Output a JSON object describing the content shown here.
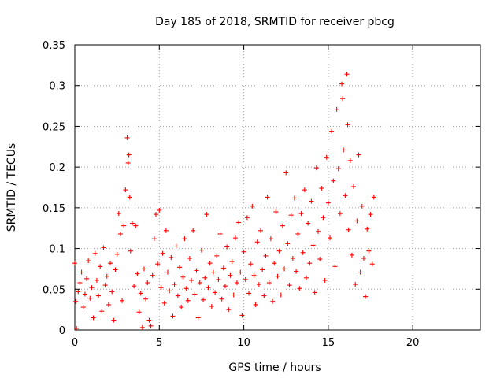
{
  "chart_data": {
    "type": "scatter",
    "title": "Day 185 of 2018, SRMTID for receiver pbcg",
    "xlabel": "GPS time / hours",
    "ylabel": "SRMTID / TECUs",
    "xlim": [
      0,
      24
    ],
    "ylim": [
      0,
      0.35
    ],
    "x_ticks": [
      0,
      5,
      10,
      15,
      20
    ],
    "x_tick_labels": [
      "0",
      "5",
      "10",
      "15",
      "20"
    ],
    "y_ticks": [
      0,
      0.05,
      0.1,
      0.15,
      0.2,
      0.25,
      0.3,
      0.35
    ],
    "y_tick_labels": [
      "0",
      "0.05",
      "0.1",
      "0.15",
      "0.2",
      "0.25",
      "0.3",
      "0.35"
    ],
    "grid": true,
    "marker": "+",
    "color": "#ff0000",
    "series": [
      {
        "name": "SRMTID",
        "points": [
          [
            0.0,
            0.082
          ],
          [
            0.05,
            0.035
          ],
          [
            0.1,
            0.002
          ],
          [
            0.2,
            0.047
          ],
          [
            0.3,
            0.058
          ],
          [
            0.4,
            0.071
          ],
          [
            0.5,
            0.028
          ],
          [
            0.6,
            0.044
          ],
          [
            0.7,
            0.063
          ],
          [
            0.8,
            0.085
          ],
          [
            0.9,
            0.039
          ],
          [
            1.0,
            0.052
          ],
          [
            1.1,
            0.015
          ],
          [
            1.2,
            0.094
          ],
          [
            1.3,
            0.061
          ],
          [
            1.4,
            0.042
          ],
          [
            1.5,
            0.078
          ],
          [
            1.6,
            0.023
          ],
          [
            1.7,
            0.101
          ],
          [
            1.8,
            0.055
          ],
          [
            1.9,
            0.066
          ],
          [
            2.0,
            0.031
          ],
          [
            2.1,
            0.082
          ],
          [
            2.2,
            0.047
          ],
          [
            2.3,
            0.012
          ],
          [
            2.4,
            0.074
          ],
          [
            2.5,
            0.093
          ],
          [
            2.6,
            0.143
          ],
          [
            2.7,
            0.118
          ],
          [
            2.8,
            0.036
          ],
          [
            2.9,
            0.128
          ],
          [
            3.0,
            0.172
          ],
          [
            3.1,
            0.236
          ],
          [
            3.15,
            0.205
          ],
          [
            3.2,
            0.215
          ],
          [
            3.25,
            0.163
          ],
          [
            3.3,
            0.097
          ],
          [
            3.4,
            0.131
          ],
          [
            3.5,
            0.054
          ],
          [
            3.6,
            0.128
          ],
          [
            3.7,
            0.069
          ],
          [
            3.8,
            0.022
          ],
          [
            3.9,
            0.045
          ],
          [
            4.0,
            0.003
          ],
          [
            4.1,
            0.075
          ],
          [
            4.2,
            0.038
          ],
          [
            4.3,
            0.058
          ],
          [
            4.4,
            0.012
          ],
          [
            4.5,
            0.005
          ],
          [
            4.6,
            0.067
          ],
          [
            4.7,
            0.112
          ],
          [
            4.8,
            0.142
          ],
          [
            4.9,
            0.081
          ],
          [
            5.0,
            0.147
          ],
          [
            5.1,
            0.052
          ],
          [
            5.2,
            0.094
          ],
          [
            5.3,
            0.033
          ],
          [
            5.4,
            0.122
          ],
          [
            5.5,
            0.071
          ],
          [
            5.6,
            0.048
          ],
          [
            5.7,
            0.089
          ],
          [
            5.8,
            0.017
          ],
          [
            5.9,
            0.056
          ],
          [
            6.0,
            0.103
          ],
          [
            6.1,
            0.042
          ],
          [
            6.2,
            0.077
          ],
          [
            6.3,
            0.028
          ],
          [
            6.4,
            0.065
          ],
          [
            6.5,
            0.112
          ],
          [
            6.6,
            0.051
          ],
          [
            6.7,
            0.036
          ],
          [
            6.8,
            0.088
          ],
          [
            6.9,
            0.061
          ],
          [
            7.0,
            0.122
          ],
          [
            7.1,
            0.044
          ],
          [
            7.2,
            0.073
          ],
          [
            7.3,
            0.015
          ],
          [
            7.4,
            0.058
          ],
          [
            7.5,
            0.098
          ],
          [
            7.6,
            0.037
          ],
          [
            7.7,
            0.064
          ],
          [
            7.8,
            0.142
          ],
          [
            7.9,
            0.052
          ],
          [
            8.0,
            0.082
          ],
          [
            8.1,
            0.029
          ],
          [
            8.2,
            0.071
          ],
          [
            8.3,
            0.046
          ],
          [
            8.4,
            0.091
          ],
          [
            8.5,
            0.062
          ],
          [
            8.6,
            0.118
          ],
          [
            8.7,
            0.038
          ],
          [
            8.8,
            0.076
          ],
          [
            8.9,
            0.054
          ],
          [
            9.0,
            0.102
          ],
          [
            9.1,
            0.025
          ],
          [
            9.2,
            0.067
          ],
          [
            9.3,
            0.084
          ],
          [
            9.4,
            0.043
          ],
          [
            9.5,
            0.113
          ],
          [
            9.6,
            0.058
          ],
          [
            9.7,
            0.132
          ],
          [
            9.8,
            0.071
          ],
          [
            9.9,
            0.018
          ],
          [
            10.0,
            0.096
          ],
          [
            10.1,
            0.062
          ],
          [
            10.2,
            0.138
          ],
          [
            10.3,
            0.045
          ],
          [
            10.4,
            0.081
          ],
          [
            10.5,
            0.152
          ],
          [
            10.6,
            0.067
          ],
          [
            10.7,
            0.031
          ],
          [
            10.8,
            0.108
          ],
          [
            10.9,
            0.056
          ],
          [
            11.0,
            0.122
          ],
          [
            11.1,
            0.074
          ],
          [
            11.2,
            0.042
          ],
          [
            11.3,
            0.091
          ],
          [
            11.4,
            0.163
          ],
          [
            11.5,
            0.058
          ],
          [
            11.6,
            0.112
          ],
          [
            11.7,
            0.035
          ],
          [
            11.8,
            0.082
          ],
          [
            11.9,
            0.145
          ],
          [
            12.0,
            0.066
          ],
          [
            12.1,
            0.097
          ],
          [
            12.2,
            0.043
          ],
          [
            12.3,
            0.128
          ],
          [
            12.4,
            0.075
          ],
          [
            12.5,
            0.193
          ],
          [
            12.6,
            0.106
          ],
          [
            12.7,
            0.055
          ],
          [
            12.8,
            0.141
          ],
          [
            12.9,
            0.088
          ],
          [
            13.0,
            0.162
          ],
          [
            13.1,
            0.072
          ],
          [
            13.2,
            0.118
          ],
          [
            13.3,
            0.051
          ],
          [
            13.4,
            0.143
          ],
          [
            13.5,
            0.095
          ],
          [
            13.6,
            0.172
          ],
          [
            13.7,
            0.064
          ],
          [
            13.8,
            0.131
          ],
          [
            13.9,
            0.082
          ],
          [
            14.0,
            0.158
          ],
          [
            14.1,
            0.104
          ],
          [
            14.2,
            0.046
          ],
          [
            14.3,
            0.199
          ],
          [
            14.4,
            0.121
          ],
          [
            14.5,
            0.087
          ],
          [
            14.6,
            0.174
          ],
          [
            14.7,
            0.138
          ],
          [
            14.8,
            0.061
          ],
          [
            14.9,
            0.212
          ],
          [
            15.0,
            0.156
          ],
          [
            15.1,
            0.113
          ],
          [
            15.2,
            0.244
          ],
          [
            15.3,
            0.183
          ],
          [
            15.4,
            0.078
          ],
          [
            15.5,
            0.271
          ],
          [
            15.6,
            0.198
          ],
          [
            15.7,
            0.143
          ],
          [
            15.8,
            0.302
          ],
          [
            15.85,
            0.284
          ],
          [
            15.9,
            0.221
          ],
          [
            16.0,
            0.165
          ],
          [
            16.1,
            0.314
          ],
          [
            16.15,
            0.252
          ],
          [
            16.2,
            0.123
          ],
          [
            16.3,
            0.208
          ],
          [
            16.4,
            0.092
          ],
          [
            16.5,
            0.176
          ],
          [
            16.6,
            0.056
          ],
          [
            16.7,
            0.134
          ],
          [
            16.8,
            0.215
          ],
          [
            16.9,
            0.071
          ],
          [
            17.0,
            0.152
          ],
          [
            17.1,
            0.088
          ],
          [
            17.2,
            0.041
          ],
          [
            17.3,
            0.124
          ],
          [
            17.4,
            0.097
          ],
          [
            17.5,
            0.142
          ],
          [
            17.6,
            0.081
          ],
          [
            17.7,
            0.163
          ]
        ]
      }
    ]
  }
}
